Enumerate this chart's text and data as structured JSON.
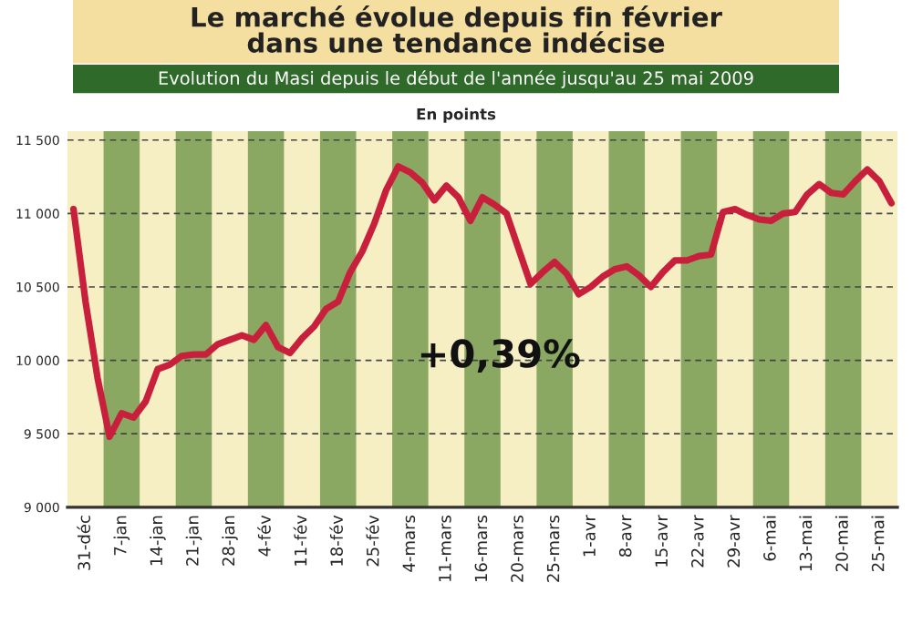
{
  "chart_data": {
    "type": "line",
    "title": "Le marché évolue depuis fin février\ndans une tendance indécise",
    "subtitle": "Evolution du Masi depuis le début de l'année jusqu'au 25 mai 2009",
    "ylabel": "En points",
    "annotations": [
      "+0,39%"
    ],
    "categories": [
      null,
      "31-déc",
      null,
      null,
      "7-jan",
      null,
      null,
      "14-jan",
      null,
      null,
      "21-jan",
      null,
      null,
      "28-jan",
      null,
      null,
      "4-fév",
      null,
      null,
      "11-fév",
      null,
      null,
      "18-fév",
      null,
      null,
      "25-fév",
      null,
      null,
      "4-mars",
      null,
      null,
      "11-mars",
      null,
      null,
      "16-mars",
      null,
      null,
      "20-mars",
      null,
      null,
      "25-mars",
      null,
      null,
      "1-avr",
      null,
      null,
      "8-avr",
      null,
      null,
      "15-avr",
      null,
      null,
      "22-avr",
      null,
      null,
      "29-avr",
      null,
      null,
      "6-mai",
      null,
      null,
      "13-mai",
      null,
      null,
      "20-mai",
      null,
      null,
      "25-mai",
      null
    ],
    "series": [
      {
        "color": "#c8203c",
        "values": [
          11030,
          10400,
          9880,
          9480,
          9640,
          9610,
          9720,
          9940,
          9970,
          10030,
          10040,
          10040,
          10110,
          10140,
          10170,
          10140,
          10240,
          10090,
          10050,
          10150,
          10230,
          10350,
          10400,
          10600,
          10740,
          10930,
          11160,
          11320,
          11280,
          11210,
          11090,
          11190,
          11110,
          10950,
          11110,
          11060,
          11000,
          10760,
          10520,
          10600,
          10670,
          10590,
          10450,
          10500,
          10570,
          10620,
          10640,
          10580,
          10500,
          10600,
          10680,
          10680,
          10710,
          10720,
          11010,
          11030,
          10990,
          10960,
          10950,
          11000,
          11010,
          11130,
          11200,
          11140,
          11130,
          11220,
          11300,
          11220,
          11070
        ]
      }
    ],
    "ylim": [
      9000,
      11560
    ],
    "yticks": [
      {
        "value": 9000,
        "label": "9 000"
      },
      {
        "value": 9500,
        "label": "9 500"
      },
      {
        "value": 10000,
        "label": "10 000"
      },
      {
        "value": 10500,
        "label": "10 500"
      },
      {
        "value": 11000,
        "label": "11 000"
      },
      {
        "value": 11500,
        "label": "11 500"
      }
    ],
    "grid": "y",
    "marker": "none",
    "line_style": "solid"
  }
}
